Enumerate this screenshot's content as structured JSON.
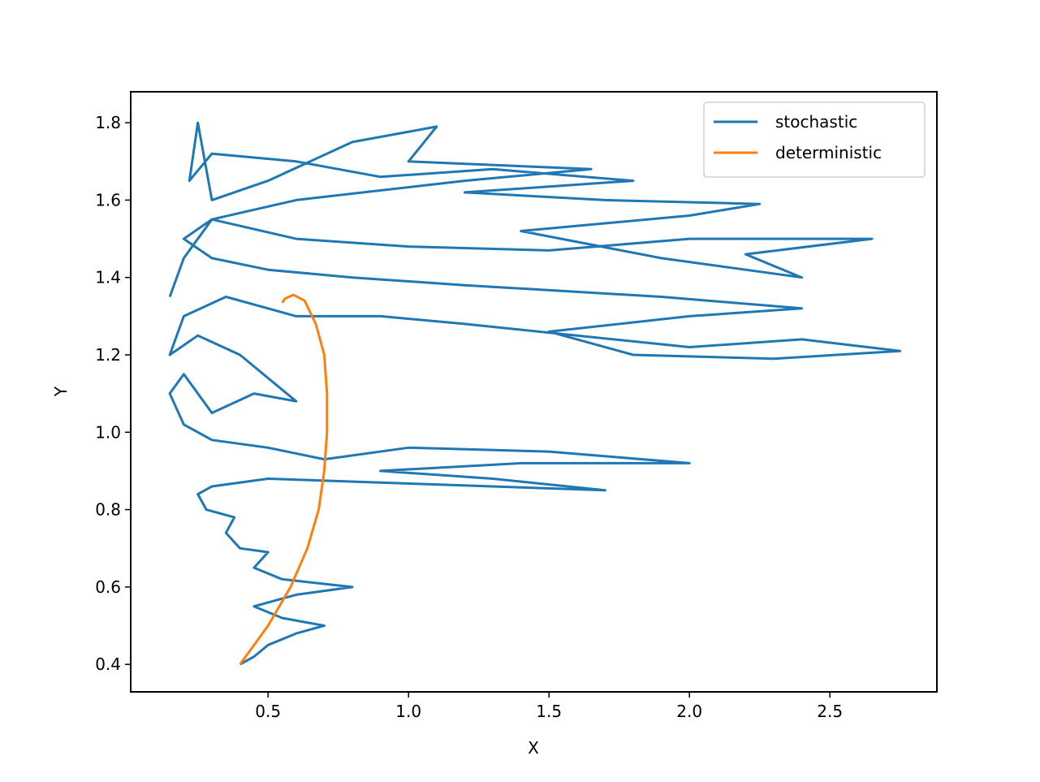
{
  "chart_data": {
    "type": "line",
    "xlabel": "X",
    "ylabel": "Y",
    "xlim": [
      0.011,
      2.881
    ],
    "ylim": [
      0.329,
      1.88
    ],
    "xticks": [
      0.5,
      {
        "value": 1,
        "label": "1.0"
      },
      1.5,
      {
        "value": 2,
        "label": "2.0"
      },
      2.5
    ],
    "yticks": [
      0.4,
      0.6,
      0.8,
      {
        "value": 1,
        "label": "1.0"
      },
      1.2,
      1.4,
      1.6,
      1.8
    ],
    "legend": "upper right",
    "series": [
      {
        "name": "stochastic",
        "color": "#1f77b4",
        "x": [
          0.4,
          0.45,
          0.5,
          0.6,
          0.7,
          0.55,
          0.45,
          0.6,
          0.8,
          0.55,
          0.45,
          0.5,
          0.4,
          0.35,
          0.38,
          0.28,
          0.25,
          0.3,
          0.5,
          0.9,
          1.3,
          1.7,
          1.3,
          0.9,
          1.4,
          2.0,
          1.5,
          1.0,
          0.7,
          0.5,
          0.3,
          0.2,
          0.15,
          0.2,
          0.3,
          0.45,
          0.6,
          0.4,
          0.25,
          0.15,
          0.2,
          0.35,
          0.6,
          0.9,
          1.2,
          1.6,
          2.0,
          2.4,
          2.75,
          2.3,
          1.8,
          1.5,
          2.0,
          2.4,
          1.9,
          1.2,
          0.8,
          0.5,
          0.3,
          0.2,
          0.3,
          0.6,
          1.0,
          1.5,
          2.0,
          2.65,
          2.2,
          2.4,
          1.9,
          1.4,
          2.0,
          2.25,
          1.7,
          1.2,
          1.8,
          1.3,
          0.9,
          0.6,
          0.3,
          0.22,
          0.25,
          0.3,
          0.5,
          0.8,
          1.1,
          1.0,
          1.65,
          1.2,
          0.6,
          0.3,
          0.2,
          0.15
        ],
        "values": [
          0.4,
          0.42,
          0.45,
          0.48,
          0.5,
          0.52,
          0.55,
          0.58,
          0.6,
          0.62,
          0.65,
          0.69,
          0.7,
          0.74,
          0.78,
          0.8,
          0.84,
          0.86,
          0.88,
          0.87,
          0.86,
          0.85,
          0.88,
          0.9,
          0.92,
          0.92,
          0.95,
          0.96,
          0.93,
          0.96,
          0.98,
          1.02,
          1.1,
          1.15,
          1.05,
          1.1,
          1.08,
          1.2,
          1.25,
          1.2,
          1.3,
          1.35,
          1.3,
          1.3,
          1.28,
          1.25,
          1.22,
          1.24,
          1.21,
          1.19,
          1.2,
          1.26,
          1.3,
          1.32,
          1.35,
          1.38,
          1.4,
          1.42,
          1.45,
          1.5,
          1.55,
          1.5,
          1.48,
          1.47,
          1.5,
          1.5,
          1.46,
          1.4,
          1.45,
          1.52,
          1.56,
          1.59,
          1.6,
          1.62,
          1.65,
          1.68,
          1.66,
          1.7,
          1.72,
          1.65,
          1.8,
          1.6,
          1.65,
          1.75,
          1.79,
          1.7,
          1.68,
          1.65,
          1.6,
          1.55,
          1.45,
          1.35
        ]
      },
      {
        "name": "deterministic",
        "color": "#ff7f0e",
        "x": [
          0.4,
          0.5,
          0.58,
          0.64,
          0.68,
          0.7,
          0.71,
          0.71,
          0.7,
          0.67,
          0.63,
          0.59,
          0.56,
          0.55
        ],
        "values": [
          0.4,
          0.5,
          0.6,
          0.7,
          0.8,
          0.9,
          1.0,
          1.1,
          1.2,
          1.28,
          1.34,
          1.355,
          1.345,
          1.335
        ]
      }
    ]
  }
}
